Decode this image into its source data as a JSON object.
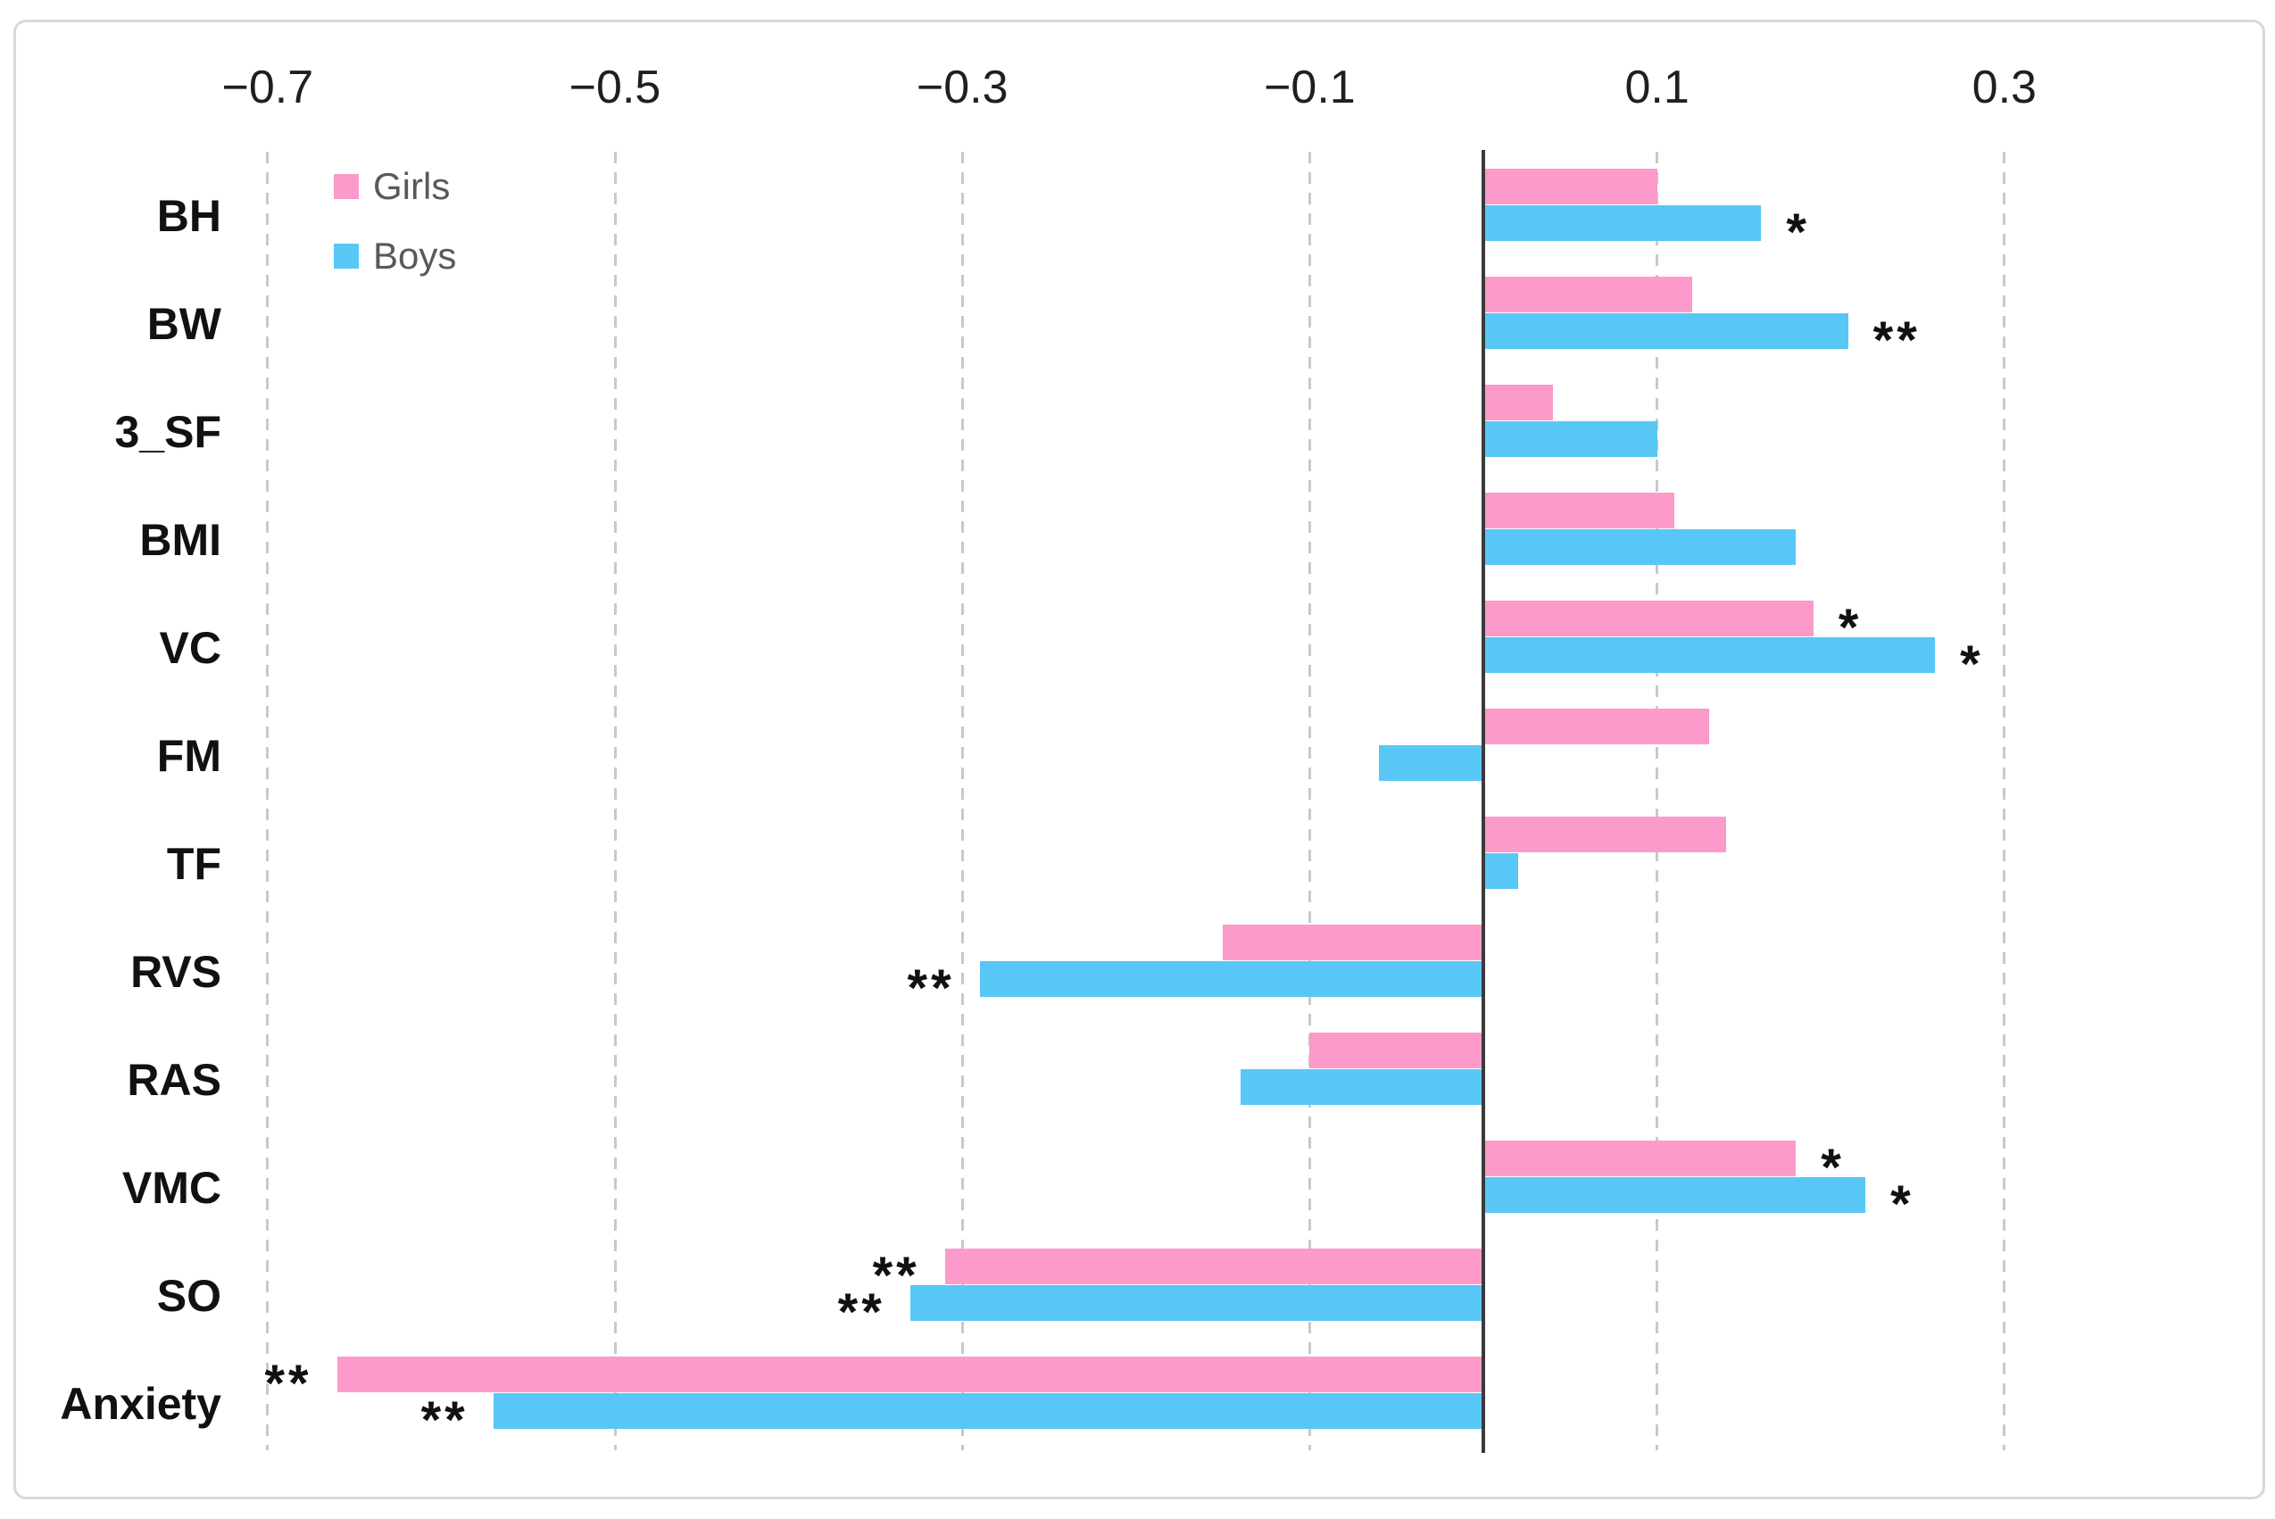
{
  "figure": {
    "kind": "horizontal grouped bar chart of correlation coefficients by sex",
    "background": "#ffffff",
    "border_color": "#d8d8d8"
  },
  "legend": {
    "girls_label": "Girls",
    "boys_label": "Boys",
    "text_color": "#595959"
  },
  "chart_data": {
    "type": "bar",
    "orientation": "horizontal",
    "categories": [
      "BH",
      "BW",
      "3_SF",
      "BMI",
      "VC",
      "FM",
      "TF",
      "RVS",
      "RAS",
      "VMC",
      "SO",
      "Anxiety"
    ],
    "series": [
      {
        "name": "Girls",
        "color": "#fb9acb",
        "values": [
          0.1,
          0.12,
          0.04,
          0.11,
          0.19,
          0.13,
          0.14,
          -0.15,
          -0.1,
          0.18,
          -0.31,
          -0.66
        ],
        "significance": [
          "",
          "",
          "",
          "",
          "*",
          "",
          "",
          "",
          "",
          "*",
          "**",
          "**"
        ]
      },
      {
        "name": "Boys",
        "color": "#58c7f6",
        "values": [
          0.16,
          0.21,
          0.1,
          0.18,
          0.26,
          -0.06,
          0.02,
          -0.29,
          -0.14,
          0.22,
          -0.33,
          -0.57
        ],
        "significance": [
          "*",
          "**",
          "",
          "",
          "*",
          "",
          "",
          "**",
          "",
          "*",
          "**",
          "**"
        ]
      }
    ],
    "x_axis": {
      "ticks": [
        -0.7,
        -0.5,
        -0.3,
        -0.1,
        0.1,
        0.3
      ],
      "tick_labels": [
        "−0.7",
        "−0.5",
        "−0.3",
        "−0.1",
        "0.1",
        "0.3"
      ],
      "range": [
        -0.84,
        0.45
      ],
      "grid": "dashed",
      "gridline_color": "#c9c9c9",
      "zero_line_color": "#3a3a3a"
    },
    "title": "",
    "xlabel": "",
    "ylabel": "",
    "legend_position": "top-left",
    "category_label_color": "#111111",
    "significance_marker_color": "#111111"
  }
}
